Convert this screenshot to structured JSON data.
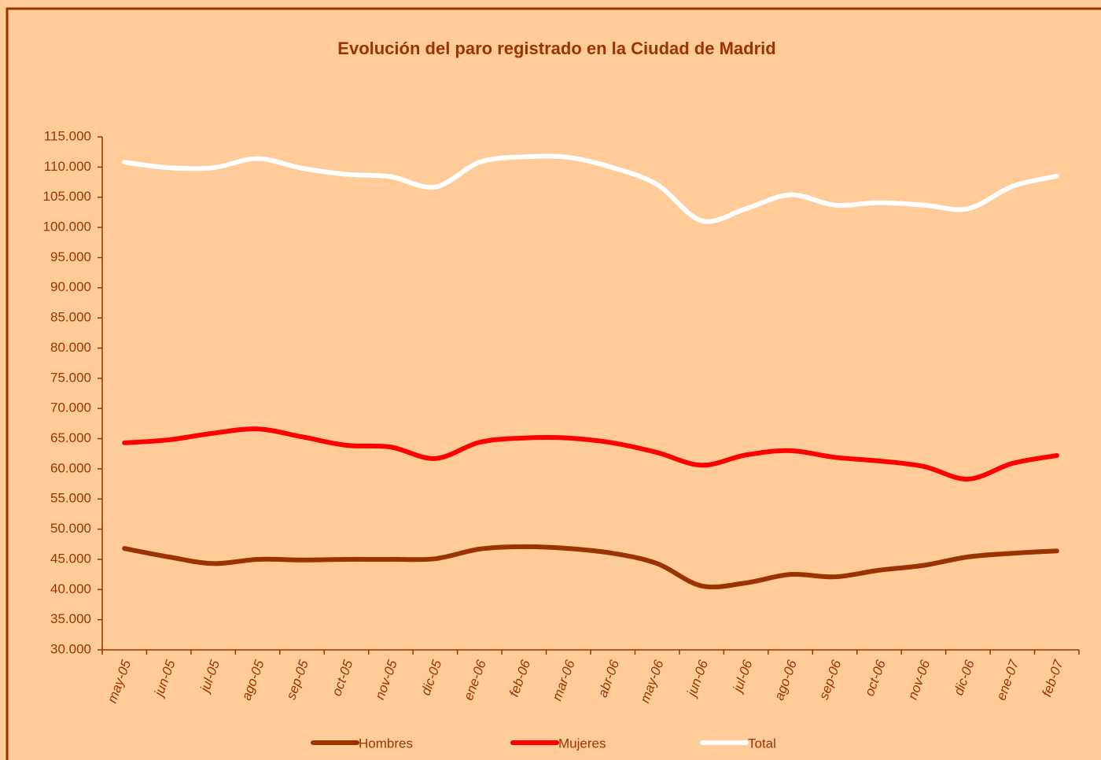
{
  "chart_data": {
    "type": "line",
    "title": "Evolución del paro registrado en la Ciudad de Madrid",
    "categories": [
      "may-05",
      "jun-05",
      "jul-05",
      "ago-05",
      "sep-05",
      "oct-05",
      "nov-05",
      "dic-05",
      "ene-06",
      "feb-06",
      "mar-06",
      "abr-06",
      "may-06",
      "jun-06",
      "jul-06",
      "ago-06",
      "sep-06",
      "oct-06",
      "nov-06",
      "dic-06",
      "ene-07",
      "feb-07"
    ],
    "series": [
      {
        "name": "Hombres",
        "color": "#993300",
        "values": [
          46800,
          45400,
          44300,
          45000,
          44900,
          45000,
          45000,
          45100,
          46700,
          47100,
          46800,
          46000,
          44300,
          40600,
          41100,
          42500,
          42100,
          43200,
          44000,
          45400,
          46000,
          46400
        ]
      },
      {
        "name": "Mujeres",
        "color": "#ff0000",
        "values": [
          64300,
          64800,
          65900,
          66600,
          65300,
          63900,
          63600,
          61700,
          64400,
          65100,
          65100,
          64300,
          62700,
          60600,
          62300,
          63000,
          61900,
          61300,
          60400,
          58300,
          60900,
          62200
        ]
      },
      {
        "name": "Total",
        "color": "#ffffff",
        "values": [
          110800,
          109900,
          109900,
          111400,
          109800,
          108800,
          108400,
          106700,
          110800,
          111700,
          111600,
          109900,
          107100,
          101100,
          103100,
          105400,
          103700,
          104100,
          103700,
          103100,
          106800,
          108500
        ]
      }
    ],
    "ylim": [
      30000,
      115000
    ],
    "yticks": [
      {
        "value": 30000,
        "label": "30.000"
      },
      {
        "value": 35000,
        "label": "35.000"
      },
      {
        "value": 40000,
        "label": "40.000"
      },
      {
        "value": 45000,
        "label": "45.000"
      },
      {
        "value": 50000,
        "label": "50.000"
      },
      {
        "value": 55000,
        "label": "55.000"
      },
      {
        "value": 60000,
        "label": "60.000"
      },
      {
        "value": 65000,
        "label": "65.000"
      },
      {
        "value": 70000,
        "label": "70.000"
      },
      {
        "value": 75000,
        "label": "75.000"
      },
      {
        "value": 80000,
        "label": "80.000"
      },
      {
        "value": 85000,
        "label": "85.000"
      },
      {
        "value": 90000,
        "label": "90.000"
      },
      {
        "value": 95000,
        "label": "95.000"
      },
      {
        "value": 100000,
        "label": "100.000"
      },
      {
        "value": 105000,
        "label": "105.000"
      },
      {
        "value": 110000,
        "label": "110.000"
      },
      {
        "value": 115000,
        "label": "115.000"
      }
    ],
    "legend": "bottom"
  }
}
